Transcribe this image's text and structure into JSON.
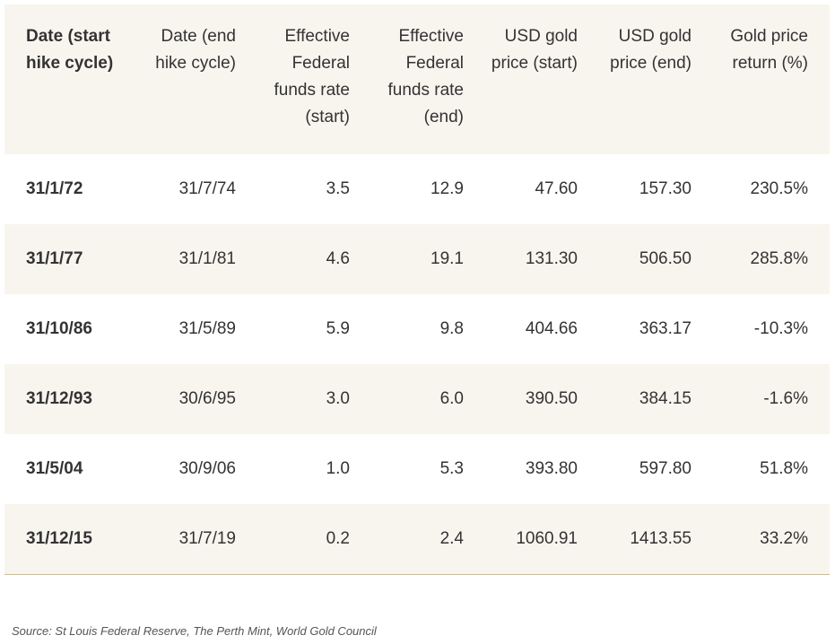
{
  "table": {
    "headers": [
      "Date (start hike cycle)",
      "Date (end hike cycle)",
      "Effective Federal funds rate (start)",
      "Effective Federal funds rate (end)",
      "USD gold price (start)",
      "USD gold price (end)",
      "Gold price return (%)"
    ],
    "rows": [
      [
        "31/1/72",
        "31/7/74",
        "3.5",
        "12.9",
        "47.60",
        "157.30",
        "230.5%"
      ],
      [
        "31/1/77",
        "31/1/81",
        "4.6",
        "19.1",
        "131.30",
        "506.50",
        "285.8%"
      ],
      [
        "31/10/86",
        "31/5/89",
        "5.9",
        "9.8",
        "404.66",
        "363.17",
        "-10.3%"
      ],
      [
        "31/12/93",
        "30/6/95",
        "3.0",
        "6.0",
        "390.50",
        "384.15",
        "-1.6%"
      ],
      [
        "31/5/04",
        "30/9/06",
        "1.0",
        "5.3",
        "393.80",
        "597.80",
        "51.8%"
      ],
      [
        "31/12/15",
        "31/7/19",
        "0.2",
        "2.4",
        "1060.91",
        "1413.55",
        "33.2%"
      ]
    ]
  },
  "source": "Source: St Louis Federal Reserve, The Perth Mint, World Gold Council",
  "colors": {
    "header_bg": "#f8f5ee",
    "stripe_bg": "#f8f5ee",
    "text": "#333333",
    "rule": "#c8bd9b"
  }
}
